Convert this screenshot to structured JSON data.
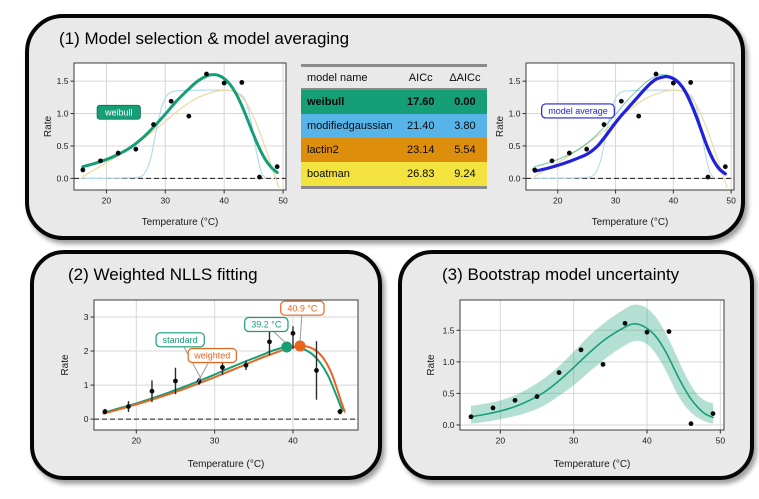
{
  "panels": [
    {
      "title": "(1) Model selection & model averaging"
    },
    {
      "title": "(2) Weighted NLLS fitting"
    },
    {
      "title": "(3) Bootstrap model uncertainty"
    }
  ],
  "table": {
    "columns": [
      "model name",
      "AICc",
      "ΔAICc"
    ],
    "rows": [
      {
        "name": "weibull",
        "aicc": "17.60",
        "daicc": "0.00",
        "color": "#169e77",
        "bold": true
      },
      {
        "name": "modifiedgaussian",
        "aicc": "21.40",
        "daicc": "3.80",
        "color": "#57b4e9",
        "bold": false
      },
      {
        "name": "lactin2",
        "aicc": "23.14",
        "daicc": "5.54",
        "color": "#dd8e0d",
        "bold": false
      },
      {
        "name": "boatman",
        "aicc": "26.83",
        "daicc": "9.24",
        "color": "#f2e33e",
        "bold": false
      }
    ]
  },
  "colors": {
    "green": "#169e77",
    "blue": "#2121dd",
    "orange": "#e8641f",
    "lightblue": "#b5d9f0",
    "wheat": "#ecd8a0",
    "panel_bg": "#e9e9e9"
  },
  "chart_data": [
    {
      "id": "weibull_fit",
      "type": "scatter",
      "xlabel": "Temperature (°C)",
      "ylabel": "Rate",
      "xlim": [
        14.5,
        50.5
      ],
      "ylim": [
        -0.18,
        1.78
      ],
      "xticks": [
        20,
        30,
        40,
        50
      ],
      "xtick_labels": [
        "20",
        "30",
        "40",
        "50"
      ],
      "yticks": [
        0,
        0.5,
        1,
        1.5
      ],
      "ytick_labels": [
        "0.0",
        "0.5",
        "1.0",
        "1.5"
      ],
      "zero_line": true,
      "points": {
        "x": [
          16,
          19,
          22,
          25,
          28,
          31,
          34,
          37,
          40,
          43,
          46,
          49
        ],
        "y": [
          0.13,
          0.27,
          0.39,
          0.45,
          0.83,
          1.19,
          0.96,
          1.61,
          1.47,
          1.48,
          0.02,
          0.18
        ]
      },
      "curves": [
        {
          "name": "modifiedgaussian",
          "color": "#b5d9f0",
          "width": 1.2,
          "opacity": 1,
          "x": [
            16,
            20,
            24,
            25.5,
            26.5,
            27.5,
            28.5,
            29.5,
            30.5,
            32,
            36,
            40,
            42,
            43.5,
            44.5,
            45.5,
            46.3,
            47
          ],
          "y": [
            0.0,
            0.0,
            0.01,
            0.02,
            0.08,
            0.3,
            0.75,
            1.13,
            1.3,
            1.35,
            1.36,
            1.36,
            1.33,
            1.22,
            0.9,
            0.4,
            0.1,
            0.01
          ]
        },
        {
          "name": "lactin2",
          "color": "#ecd8a0",
          "width": 1.2,
          "opacity": 1,
          "x": [
            16,
            20,
            24,
            28,
            32,
            35,
            38,
            40,
            42,
            44,
            46,
            48,
            49.3
          ],
          "y": [
            0.03,
            0.24,
            0.47,
            0.73,
            1.03,
            1.22,
            1.33,
            1.36,
            1.33,
            1.13,
            0.72,
            0.2,
            -0.14
          ]
        },
        {
          "name": "weibull",
          "color": "#169e77",
          "width": 3,
          "opacity": 1,
          "x": [
            16,
            18,
            20,
            22,
            24,
            26,
            28,
            30,
            32,
            34,
            35.5,
            37,
            38,
            39,
            40,
            41,
            42,
            43,
            44,
            45,
            46,
            47,
            48,
            49
          ],
          "y": [
            0.18,
            0.23,
            0.29,
            0.37,
            0.47,
            0.61,
            0.79,
            0.99,
            1.2,
            1.38,
            1.5,
            1.58,
            1.6,
            1.59,
            1.54,
            1.45,
            1.31,
            1.12,
            0.9,
            0.67,
            0.46,
            0.29,
            0.17,
            0.09
          ]
        }
      ],
      "annotations": [
        {
          "text": "weibull",
          "x": 22.1,
          "y": 1.02,
          "style": "filled",
          "color": "#169e77"
        }
      ]
    },
    {
      "id": "model_average",
      "type": "scatter",
      "xlabel": "Temperature (°C)",
      "ylabel": "Rate",
      "xlim": [
        14.5,
        50.5
      ],
      "ylim": [
        -0.18,
        1.78
      ],
      "xticks": [
        20,
        30,
        40,
        50
      ],
      "xtick_labels": [
        "20",
        "30",
        "40",
        "50"
      ],
      "yticks": [
        0,
        0.5,
        1,
        1.5
      ],
      "ytick_labels": [
        "0.0",
        "0.5",
        "1.0",
        "1.5"
      ],
      "zero_line": true,
      "points": {
        "x": [
          16,
          19,
          22,
          25,
          28,
          31,
          34,
          37,
          40,
          43,
          46,
          49
        ],
        "y": [
          0.13,
          0.27,
          0.39,
          0.45,
          0.83,
          1.19,
          0.96,
          1.61,
          1.47,
          1.48,
          0.02,
          0.18
        ]
      },
      "curves": [
        {
          "name": "modifiedgaussian",
          "color": "#b5d9f0",
          "width": 1.1,
          "opacity": 1,
          "x": [
            16,
            20,
            24,
            25.5,
            26.5,
            27.5,
            28.5,
            29.5,
            30.5,
            32,
            36,
            40,
            42,
            43.5,
            44.5,
            45.5,
            46.3,
            47
          ],
          "y": [
            0.0,
            0.0,
            0.01,
            0.02,
            0.08,
            0.3,
            0.75,
            1.13,
            1.3,
            1.35,
            1.36,
            1.36,
            1.33,
            1.22,
            0.9,
            0.4,
            0.1,
            0.01
          ]
        },
        {
          "name": "lactin2",
          "color": "#ecd8a0",
          "width": 1.1,
          "opacity": 1,
          "x": [
            16,
            20,
            24,
            28,
            32,
            35,
            38,
            40,
            42,
            44,
            46,
            48,
            49.3
          ],
          "y": [
            0.03,
            0.24,
            0.47,
            0.73,
            1.03,
            1.22,
            1.33,
            1.36,
            1.33,
            1.13,
            0.72,
            0.2,
            -0.14
          ]
        },
        {
          "name": "weibull",
          "color": "#169e77",
          "width": 1.1,
          "opacity": 0.55,
          "x": [
            16,
            18,
            20,
            22,
            24,
            26,
            28,
            30,
            32,
            34,
            35.5,
            37,
            38,
            39,
            40,
            41,
            42,
            43,
            44,
            45,
            46,
            47,
            48,
            49
          ],
          "y": [
            0.18,
            0.23,
            0.29,
            0.37,
            0.47,
            0.61,
            0.79,
            0.99,
            1.2,
            1.38,
            1.5,
            1.58,
            1.6,
            1.59,
            1.54,
            1.45,
            1.31,
            1.12,
            0.9,
            0.67,
            0.46,
            0.29,
            0.17,
            0.09
          ]
        },
        {
          "name": "model average",
          "color": "#2121dd",
          "width": 3.2,
          "opacity": 1,
          "x": [
            16,
            18,
            20,
            22,
            24,
            25,
            26,
            27,
            28,
            29,
            30,
            31,
            32,
            33,
            34,
            35,
            36,
            37,
            38,
            39,
            40,
            41,
            42,
            43,
            44,
            45,
            46,
            47,
            48,
            49
          ],
          "y": [
            0.11,
            0.15,
            0.2,
            0.26,
            0.33,
            0.37,
            0.43,
            0.51,
            0.62,
            0.74,
            0.86,
            0.97,
            1.07,
            1.17,
            1.27,
            1.37,
            1.46,
            1.53,
            1.56,
            1.57,
            1.54,
            1.47,
            1.35,
            1.17,
            0.95,
            0.7,
            0.46,
            0.27,
            0.14,
            0.07
          ]
        }
      ],
      "annotations": [
        {
          "text": "model average",
          "x": 23.5,
          "y": 1.04,
          "style": "outline",
          "color": "#2121dd"
        }
      ]
    },
    {
      "id": "nlls",
      "type": "scatter",
      "xlabel": "Temperature (°C)",
      "ylabel": "Rate",
      "xlim": [
        14.6,
        48.3
      ],
      "ylim": [
        -0.32,
        3.5
      ],
      "xticks": [
        20,
        30,
        40
      ],
      "xtick_labels": [
        "20",
        "30",
        "40"
      ],
      "yticks": [
        0,
        1,
        2,
        3
      ],
      "ytick_labels": [
        "0",
        "1",
        "2",
        "3"
      ],
      "zero_line": true,
      "points": {
        "x": [
          16,
          19,
          22,
          25,
          28,
          31,
          34,
          37,
          40,
          43,
          46
        ],
        "y": [
          0.22,
          0.37,
          0.82,
          1.12,
          1.11,
          1.52,
          1.58,
          2.27,
          2.52,
          1.43,
          0.22
        ]
      },
      "errors": {
        "ymin": [
          0.14,
          0.21,
          0.5,
          0.73,
          1.01,
          1.3,
          1.44,
          1.87,
          2.06,
          0.57,
          0.14
        ],
        "ymax": [
          0.3,
          0.53,
          1.14,
          1.51,
          1.21,
          1.74,
          1.72,
          2.67,
          2.73,
          2.29,
          0.3
        ]
      },
      "curves": [
        {
          "name": "standard",
          "color": "#169e77",
          "width": 2,
          "opacity": 1,
          "x": [
            15.8,
            18,
            20,
            22,
            24,
            26,
            28,
            30,
            32,
            34,
            36,
            37.5,
            39.2,
            40.5,
            41.5,
            42.5,
            43.5,
            44.5,
            45.5,
            46.3
          ],
          "y": [
            0.18,
            0.33,
            0.46,
            0.61,
            0.77,
            0.94,
            1.12,
            1.31,
            1.51,
            1.7,
            1.88,
            2.02,
            2.12,
            2.11,
            2.04,
            1.9,
            1.65,
            1.27,
            0.72,
            0.25
          ]
        },
        {
          "name": "weighted",
          "color": "#e8641f",
          "width": 2,
          "opacity": 1,
          "x": [
            15.8,
            18,
            20,
            22,
            24,
            26,
            28,
            30,
            32,
            34,
            36,
            38,
            40,
            40.9,
            42,
            43,
            44,
            45,
            46,
            46.6
          ],
          "y": [
            0.16,
            0.3,
            0.43,
            0.57,
            0.72,
            0.88,
            1.05,
            1.23,
            1.42,
            1.61,
            1.8,
            1.97,
            2.12,
            2.15,
            2.12,
            2.0,
            1.75,
            1.3,
            0.62,
            0.22
          ]
        }
      ],
      "markers": [
        {
          "x": 39.2,
          "y": 2.12,
          "color": "#169e77",
          "r": 5.5
        },
        {
          "x": 40.9,
          "y": 2.15,
          "color": "#e8641f",
          "r": 5.5
        }
      ],
      "annotations": [
        {
          "text": "standard",
          "x": 25.6,
          "y": 2.33,
          "style": "outline",
          "color": "#169e77",
          "tx": 28.4,
          "ty": 1.13
        },
        {
          "text": "weighted",
          "x": 29.7,
          "y": 1.87,
          "style": "outline",
          "color": "#e8641f",
          "tx": 27.7,
          "ty": 1.02
        },
        {
          "text": "39.2 °C",
          "x": 36.6,
          "y": 2.78,
          "style": "outline",
          "color": "#169e77",
          "tx": 39.0,
          "ty": 2.25
        },
        {
          "text": "40.9 °C",
          "x": 41.2,
          "y": 3.26,
          "style": "outline",
          "color": "#e8641f",
          "tx": 40.9,
          "ty": 2.3
        }
      ]
    },
    {
      "id": "bootstrap",
      "type": "scatter",
      "xlabel": "Temperature (°C)",
      "ylabel": "Rate",
      "xlim": [
        14.5,
        50.5
      ],
      "ylim": [
        -0.08,
        1.98
      ],
      "xticks": [
        20,
        30,
        40,
        50
      ],
      "xtick_labels": [
        "20",
        "30",
        "40",
        "50"
      ],
      "yticks": [
        0,
        0.5,
        1,
        1.5
      ],
      "ytick_labels": [
        "0.0",
        "0.5",
        "1.0",
        "1.5"
      ],
      "zero_line": false,
      "points": {
        "x": [
          16,
          19,
          22,
          25,
          28,
          31,
          34,
          37,
          40,
          43,
          46,
          49
        ],
        "y": [
          0.13,
          0.27,
          0.39,
          0.45,
          0.83,
          1.19,
          0.96,
          1.61,
          1.47,
          1.48,
          0.02,
          0.18
        ]
      },
      "ribbon": {
        "color": "#169e77",
        "opacity": 0.32,
        "x": [
          16,
          18,
          20,
          22,
          24,
          26,
          28,
          30,
          32,
          34,
          35.5,
          37,
          38,
          39,
          40,
          41,
          42,
          43,
          44,
          45,
          46,
          47,
          48,
          49
        ],
        "ylo": [
          0.02,
          0.05,
          0.09,
          0.14,
          0.21,
          0.31,
          0.46,
          0.63,
          0.83,
          1.02,
          1.15,
          1.26,
          1.32,
          1.33,
          1.28,
          1.16,
          0.98,
          0.76,
          0.52,
          0.33,
          0.2,
          0.11,
          0.05,
          0.02
        ],
        "yhi": [
          0.3,
          0.34,
          0.39,
          0.47,
          0.59,
          0.74,
          0.93,
          1.16,
          1.4,
          1.6,
          1.73,
          1.84,
          1.9,
          1.9,
          1.85,
          1.74,
          1.57,
          1.35,
          1.1,
          0.85,
          0.63,
          0.47,
          0.38,
          0.34
        ]
      },
      "curves": [
        {
          "name": "bootstrap fit",
          "color": "#169e77",
          "width": 1.6,
          "opacity": 1,
          "x": [
            16,
            18,
            20,
            22,
            24,
            26,
            28,
            30,
            32,
            34,
            35.5,
            37,
            38,
            39,
            40,
            41,
            42,
            43,
            44,
            45,
            46,
            47,
            48,
            49
          ],
          "y": [
            0.13,
            0.17,
            0.22,
            0.29,
            0.39,
            0.52,
            0.7,
            0.91,
            1.13,
            1.33,
            1.45,
            1.55,
            1.6,
            1.59,
            1.53,
            1.43,
            1.27,
            1.06,
            0.82,
            0.6,
            0.41,
            0.27,
            0.17,
            0.12
          ]
        }
      ],
      "annotations": []
    }
  ]
}
